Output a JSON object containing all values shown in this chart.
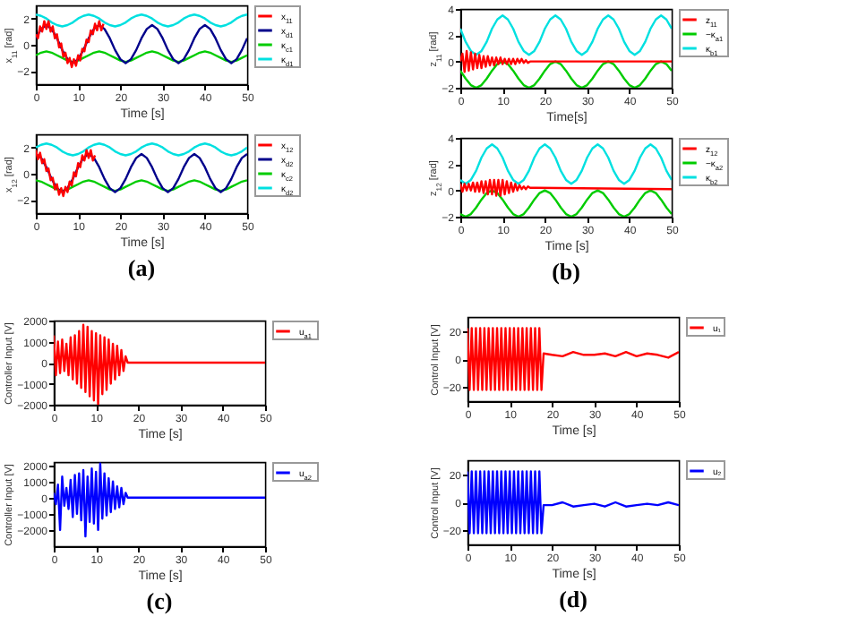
{
  "chart_data": [
    {
      "type": "line",
      "ylabel": "x$_{11}$ [rad]",
      "xlabel": "Time [s]",
      "xlim": [
        0,
        50
      ],
      "xticks": [
        0,
        10,
        20,
        30,
        40,
        50
      ],
      "ylim": [
        -3,
        3
      ],
      "yticks": [
        -2,
        0,
        2
      ],
      "legend": "top right",
      "x": [
        0,
        1.25,
        2.5,
        3.75,
        5,
        6.25,
        7.5,
        8.75,
        10,
        11.25,
        12.5,
        13.75,
        15,
        16.25,
        17.5,
        18.75,
        20,
        21.25,
        22.5,
        23.75,
        25,
        26.25,
        27.5,
        28.75,
        30,
        31.25,
        32.5,
        33.75,
        35,
        36.25,
        37.5,
        38.75,
        40,
        41.25,
        42.5,
        43.75,
        45,
        46.25,
        47.5,
        48.75,
        50
      ],
      "series": [
        {
          "name": "x$_{11}$",
          "color": "#ff0000",
          "x": [
            0,
            0.5,
            1,
            1.5,
            2,
            2.5,
            3,
            3.5,
            4,
            4.5,
            5,
            5.5,
            6,
            6.5,
            7,
            7.5,
            8,
            8.5,
            9,
            9.5,
            10,
            10.5,
            11,
            11.5,
            12,
            12.5,
            13,
            13.5,
            14,
            14.5,
            15,
            15.5,
            16
          ],
          "values": [
            0.8,
            0.5,
            1.4,
            1.0,
            1.8,
            1.2,
            1.8,
            1.0,
            1.4,
            0.5,
            0.8,
            -0.2,
            0.1,
            -0.9,
            -0.6,
            -1.4,
            -1.0,
            -1.7,
            -1.1,
            -1.6,
            -0.8,
            -1.2,
            -0.3,
            -0.5,
            0.4,
            0.2,
            1.1,
            0.8,
            1.6,
            1.1,
            1.8,
            1.1,
            1.6
          ]
        },
        {
          "name": "x$_{d1}$",
          "color": "#00008b",
          "values": [
            0.5,
            1.2,
            1.5,
            1.2,
            0.5,
            -0.4,
            -1.1,
            -1.4,
            -1.1,
            -0.4,
            0.5,
            1.2,
            1.5,
            1.2,
            0.5,
            -0.4,
            -1.1,
            -1.4,
            -1.1,
            -0.4,
            0.5,
            1.2,
            1.5,
            1.2,
            0.5,
            -0.4,
            -1.1,
            -1.4,
            -1.1,
            -0.4,
            0.5,
            1.2,
            1.5,
            1.2,
            0.5,
            -0.4,
            -1.1,
            -1.4,
            -1.1,
            -0.4,
            0.5
          ]
        },
        {
          "name": "κ$_{c1}$",
          "color": "#00cc00",
          "values": [
            -0.8,
            -0.6,
            -0.5,
            -0.6,
            -0.8,
            -1.0,
            -1.2,
            -1.3,
            -1.2,
            -1.0,
            -0.8,
            -0.6,
            -0.5,
            -0.6,
            -0.8,
            -1.0,
            -1.2,
            -1.3,
            -1.2,
            -1.0,
            -0.8,
            -0.6,
            -0.5,
            -0.6,
            -0.8,
            -1.0,
            -1.2,
            -1.3,
            -1.2,
            -1.0,
            -0.8,
            -0.6,
            -0.5,
            -0.6,
            -0.8,
            -1.0,
            -1.2,
            -1.3,
            -1.2,
            -1.0,
            -0.8
          ]
        },
        {
          "name": "κ$_{d1}$",
          "color": "#00e0e0",
          "values": [
            2.3,
            2.2,
            2.0,
            1.7,
            1.5,
            1.4,
            1.5,
            1.7,
            2.0,
            2.2,
            2.3,
            2.2,
            2.0,
            1.7,
            1.5,
            1.4,
            1.5,
            1.7,
            2.0,
            2.2,
            2.3,
            2.2,
            2.0,
            1.7,
            1.5,
            1.4,
            1.5,
            1.7,
            2.0,
            2.2,
            2.3,
            2.2,
            2.0,
            1.7,
            1.5,
            1.4,
            1.5,
            1.7,
            2.0,
            2.2,
            2.3
          ]
        }
      ]
    },
    {
      "type": "line",
      "ylabel": "x$_{12}$ [rad]",
      "xlabel": "Time [s]",
      "annotations": [
        "(a)"
      ],
      "xlim": [
        0,
        50
      ],
      "xticks": [
        0,
        10,
        20,
        30,
        40,
        50
      ],
      "ylim": [
        -3,
        3
      ],
      "yticks": [
        -2,
        0,
        2
      ],
      "legend": "top right",
      "x": [
        0,
        1.25,
        2.5,
        3.75,
        5,
        6.25,
        7.5,
        8.75,
        10,
        11.25,
        12.5,
        13.75,
        15,
        16.25,
        17.5,
        18.75,
        20,
        21.25,
        22.5,
        23.75,
        25,
        26.25,
        27.5,
        28.75,
        30,
        31.25,
        32.5,
        33.75,
        35,
        36.25,
        37.5,
        38.75,
        40,
        41.25,
        42.5,
        43.75,
        45,
        46.25,
        47.5,
        48.75,
        50
      ],
      "series": [
        {
          "name": "x$_{12}$",
          "color": "#ff0000",
          "x": [
            0,
            0.5,
            1,
            1.5,
            2,
            2.5,
            3,
            3.5,
            4,
            4.5,
            5,
            5.5,
            6,
            6.5,
            7,
            7.5,
            8,
            8.5,
            9,
            9.5,
            10,
            10.5,
            11,
            11.5,
            12,
            12.5,
            13,
            13.5,
            14
          ],
          "values": [
            1.8,
            1.1,
            1.6,
            0.8,
            1.1,
            0.2,
            0.4,
            -0.5,
            -0.3,
            -1.2,
            -0.8,
            -1.6,
            -1.1,
            -1.7,
            -1.0,
            -1.4,
            -0.6,
            -0.9,
            0.1,
            -0.2,
            0.8,
            0.5,
            1.4,
            1.0,
            1.8,
            1.2,
            1.8,
            1.0,
            1.4
          ]
        },
        {
          "name": "x$_{d2}$",
          "color": "#00008b",
          "values": [
            1.5,
            1.2,
            0.5,
            -0.4,
            -1.1,
            -1.4,
            -1.1,
            -0.4,
            0.5,
            1.2,
            1.5,
            1.2,
            0.5,
            -0.4,
            -1.1,
            -1.4,
            -1.1,
            -0.4,
            0.5,
            1.2,
            1.5,
            1.2,
            0.5,
            -0.4,
            -1.1,
            -1.4,
            -1.1,
            -0.4,
            0.5,
            1.2,
            1.5,
            1.2,
            0.5,
            -0.4,
            -1.1,
            -1.4,
            -1.1,
            -0.4,
            0.5,
            1.2,
            1.5
          ]
        },
        {
          "name": "κ$_{c2}$",
          "color": "#00cc00",
          "values": [
            -0.5,
            -0.6,
            -0.8,
            -1.0,
            -1.2,
            -1.3,
            -1.2,
            -1.0,
            -0.8,
            -0.6,
            -0.5,
            -0.6,
            -0.8,
            -1.0,
            -1.2,
            -1.3,
            -1.2,
            -1.0,
            -0.8,
            -0.6,
            -0.5,
            -0.6,
            -0.8,
            -1.0,
            -1.2,
            -1.3,
            -1.2,
            -1.0,
            -0.8,
            -0.6,
            -0.5,
            -0.6,
            -0.8,
            -1.0,
            -1.2,
            -1.3,
            -1.2,
            -1.0,
            -0.8,
            -0.6,
            -0.5
          ]
        },
        {
          "name": "κ$_{d2}$",
          "color": "#00e0e0",
          "values": [
            2.0,
            2.2,
            2.3,
            2.2,
            2.0,
            1.7,
            1.5,
            1.4,
            1.5,
            1.7,
            2.0,
            2.2,
            2.3,
            2.2,
            2.0,
            1.7,
            1.5,
            1.4,
            1.5,
            1.7,
            2.0,
            2.2,
            2.3,
            2.2,
            2.0,
            1.7,
            1.5,
            1.4,
            1.5,
            1.7,
            2.0,
            2.2,
            2.3,
            2.2,
            2.0,
            1.7,
            1.5,
            1.4,
            1.5,
            1.7,
            2.0
          ]
        }
      ]
    },
    {
      "type": "line",
      "ylabel": "z$_{11}$ [rad]",
      "xlabel": "Time[s]",
      "xlim": [
        0,
        50
      ],
      "xticks": [
        0,
        10,
        20,
        30,
        40,
        50
      ],
      "ylim": [
        -2,
        4
      ],
      "yticks": [
        -2,
        0,
        2,
        4
      ],
      "legend": "top right",
      "x": [
        0,
        1.25,
        2.5,
        3.75,
        5,
        6.25,
        7.5,
        8.75,
        10,
        11.25,
        12.5,
        13.75,
        15,
        16.25,
        17.5,
        18.75,
        20,
        21.25,
        22.5,
        23.75,
        25,
        26.25,
        27.5,
        28.75,
        30,
        31.25,
        32.5,
        33.75,
        35,
        36.25,
        37.5,
        38.75,
        40,
        41.25,
        42.5,
        43.75,
        45,
        46.25,
        47.5,
        48.75,
        50
      ],
      "series": [
        {
          "name": "z$_{11}$",
          "color": "#ff0000",
          "x": [
            0,
            0.5,
            1,
            1.5,
            2,
            2.5,
            3,
            3.5,
            4,
            4.5,
            5,
            5.5,
            6,
            6.5,
            7,
            7.5,
            8,
            8.5,
            9,
            9.5,
            10,
            10.5,
            11,
            11.5,
            12,
            12.5,
            13,
            13.5,
            14,
            14.5,
            15,
            15.5,
            16,
            16.5,
            20,
            50
          ],
          "values": [
            0,
            0.6,
            -0.8,
            0.8,
            -0.7,
            0.7,
            -0.6,
            0.6,
            -0.5,
            0.5,
            -0.5,
            0.4,
            -0.4,
            0.4,
            -0.3,
            0.3,
            -0.3,
            0.3,
            -0.2,
            0.3,
            -0.2,
            0.2,
            -0.2,
            0.2,
            -0.2,
            0.2,
            -0.2,
            0.2,
            -0.1,
            0.2,
            -0.1,
            0.1,
            -0.1,
            0,
            0,
            0
          ]
        },
        {
          "name": "−κ$_{a1}$",
          "color": "#00cc00",
          "values": [
            -0.7,
            -1.3,
            -1.8,
            -2.0,
            -1.8,
            -1.3,
            -0.7,
            -0.2,
            0,
            -0.2,
            -0.7,
            -1.3,
            -1.8,
            -2.0,
            -1.8,
            -1.3,
            -0.7,
            -0.2,
            0,
            -0.2,
            -0.7,
            -1.3,
            -1.8,
            -2.0,
            -1.8,
            -1.3,
            -0.7,
            -0.2,
            0,
            -0.2,
            -0.7,
            -1.3,
            -1.8,
            -2.0,
            -1.8,
            -1.3,
            -0.7,
            -0.2,
            0,
            -0.2,
            -0.7
          ]
        },
        {
          "name": "κ$_{b1}$",
          "color": "#00e0e0",
          "values": [
            2.5,
            1.5,
            0.8,
            0.5,
            0.8,
            1.5,
            2.5,
            3.2,
            3.5,
            3.2,
            2.5,
            1.5,
            0.8,
            0.5,
            0.8,
            1.5,
            2.5,
            3.2,
            3.5,
            3.2,
            2.5,
            1.5,
            0.8,
            0.5,
            0.8,
            1.5,
            2.5,
            3.2,
            3.5,
            3.2,
            2.5,
            1.5,
            0.8,
            0.5,
            0.8,
            1.5,
            2.5,
            3.2,
            3.5,
            3.2,
            2.5
          ]
        }
      ]
    },
    {
      "type": "line",
      "ylabel": "z$_{12}$ [rad]",
      "xlabel": "Time [s]",
      "annotations": [
        "(b)"
      ],
      "xlim": [
        0,
        50
      ],
      "xticks": [
        0,
        10,
        20,
        30,
        40,
        50
      ],
      "ylim": [
        -2,
        4
      ],
      "yticks": [
        -2,
        0,
        2,
        4
      ],
      "legend": "top right",
      "x": [
        0,
        1.25,
        2.5,
        3.75,
        5,
        6.25,
        7.5,
        8.75,
        10,
        11.25,
        12.5,
        13.75,
        15,
        16.25,
        17.5,
        18.75,
        20,
        21.25,
        22.5,
        23.75,
        25,
        26.25,
        27.5,
        28.75,
        30,
        31.25,
        32.5,
        33.75,
        35,
        36.25,
        37.5,
        38.75,
        40,
        41.25,
        42.5,
        43.75,
        45,
        46.25,
        47.5,
        48.75,
        50
      ],
      "series": [
        {
          "name": "z$_{12}$",
          "color": "#ff0000",
          "x": [
            0,
            0.5,
            1,
            1.5,
            2,
            2.5,
            3,
            3.5,
            4,
            4.5,
            5,
            5.5,
            6,
            6.5,
            7,
            7.5,
            8,
            8.5,
            9,
            9.5,
            10,
            10.5,
            11,
            11.5,
            12,
            12.5,
            13,
            13.5,
            14,
            14.5,
            15,
            15.5,
            16,
            16.5,
            17,
            17.5,
            18,
            50
          ],
          "values": [
            0.5,
            -0.1,
            0.5,
            0,
            0.5,
            0,
            0.6,
            -0.1,
            0.6,
            -0.1,
            0.7,
            -0.2,
            0.7,
            -0.3,
            0.8,
            -0.3,
            0.8,
            -0.4,
            0.8,
            -0.4,
            0.8,
            -0.3,
            0.7,
            -0.2,
            0.6,
            -0.1,
            0.5,
            0,
            0.4,
            0.1,
            0.3,
            0.1,
            0.3,
            0.2,
            0.2,
            0.2,
            0.2,
            0.1
          ]
        },
        {
          "name": "−κ$_{a2}$",
          "color": "#00cc00",
          "values": [
            -1.8,
            -2.0,
            -1.8,
            -1.3,
            -0.7,
            -0.2,
            0,
            -0.2,
            -0.7,
            -1.3,
            -1.8,
            -2.0,
            -1.8,
            -1.3,
            -0.7,
            -0.2,
            0,
            -0.2,
            -0.7,
            -1.3,
            -1.8,
            -2.0,
            -1.8,
            -1.3,
            -0.7,
            -0.2,
            0,
            -0.2,
            -0.7,
            -1.3,
            -1.8,
            -2.0,
            -1.8,
            -1.3,
            -0.7,
            -0.2,
            0,
            -0.2,
            -0.7,
            -1.3,
            -1.8
          ]
        },
        {
          "name": "κ$_{b2}$",
          "color": "#00e0e0",
          "values": [
            0.8,
            0.5,
            0.8,
            1.5,
            2.5,
            3.2,
            3.5,
            3.2,
            2.5,
            1.5,
            0.8,
            0.5,
            0.8,
            1.5,
            2.5,
            3.2,
            3.5,
            3.2,
            2.5,
            1.5,
            0.8,
            0.5,
            0.8,
            1.5,
            2.5,
            3.2,
            3.5,
            3.2,
            2.5,
            1.5,
            0.8,
            0.5,
            0.8,
            1.5,
            2.5,
            3.2,
            3.5,
            3.2,
            2.5,
            1.5,
            0.8
          ]
        }
      ]
    },
    {
      "type": "line",
      "ylabel": "Controller Input [V]",
      "xlabel": "Time [s]",
      "xlim": [
        0,
        50
      ],
      "xticks": [
        0,
        10,
        20,
        30,
        40,
        50
      ],
      "ylim": [
        -2000,
        2000
      ],
      "yticks": [
        -2000,
        -1000,
        0,
        1000,
        2000
      ],
      "legend": "top right",
      "x": [
        0,
        0.5,
        1,
        1.5,
        2,
        2.5,
        3,
        3.5,
        4,
        4.5,
        5,
        5.5,
        6,
        6.5,
        7,
        7.5,
        8,
        8.5,
        9,
        9.5,
        10,
        10.5,
        11,
        11.5,
        12,
        12.5,
        13,
        13.5,
        14,
        14.5,
        15,
        15.5,
        16,
        16.5,
        17,
        17.5,
        50
      ],
      "series": [
        {
          "name": "u$_{a1}$",
          "color": "#ff0000",
          "values": [
            1300,
            -600,
            1000,
            -500,
            1100,
            -400,
            900,
            -600,
            1200,
            -800,
            1300,
            -1000,
            1500,
            -1200,
            1800,
            -1400,
            1700,
            -1600,
            1500,
            -1800,
            1400,
            -2000,
            1300,
            -1500,
            1200,
            -1300,
            1100,
            -1000,
            900,
            -800,
            800,
            -600,
            600,
            -400,
            300,
            0,
            0
          ]
        }
      ]
    },
    {
      "type": "line",
      "ylabel": "Controller Input [V]",
      "xlabel": "Time [s]",
      "annotations": [
        "(c)"
      ],
      "xlim": [
        0,
        50
      ],
      "xticks": [
        0,
        10,
        20,
        30,
        40,
        50
      ],
      "ylim": [
        -3000,
        2200
      ],
      "yticks": [
        -2000,
        -1000,
        0,
        1000,
        2000
      ],
      "legend": "top right",
      "x": [
        0,
        0.5,
        1,
        1.5,
        2,
        2.5,
        3,
        3.5,
        4,
        4.5,
        5,
        5.5,
        6,
        6.5,
        7,
        7.5,
        8,
        8.5,
        9,
        9.5,
        10,
        10.5,
        11,
        11.5,
        12,
        12.5,
        13,
        13.5,
        14,
        14.5,
        15,
        15.5,
        16,
        16.5,
        17,
        17.5,
        50
      ],
      "series": [
        {
          "name": "u$_{a2}$",
          "color": "#0000ff",
          "values": [
            300,
            -400,
            800,
            -2000,
            1300,
            -500,
            600,
            -700,
            1100,
            -1200,
            1400,
            -1000,
            1500,
            -1400,
            1700,
            -2400,
            1300,
            -1500,
            1800,
            -1600,
            1600,
            -2000,
            2100,
            -1300,
            1500,
            -1100,
            1200,
            -900,
            1000,
            -700,
            700,
            -600,
            600,
            -400,
            300,
            0,
            0
          ]
        }
      ]
    },
    {
      "type": "line",
      "ylabel": "Control Input [V]",
      "xlabel": "Time [s]",
      "xlim": [
        0,
        50
      ],
      "xticks": [
        0,
        10,
        20,
        30,
        40,
        50
      ],
      "ylim": [
        -30,
        30
      ],
      "yticks": [
        -20,
        0,
        20
      ],
      "legend": "top right",
      "x": [
        0,
        0.5,
        1,
        1.5,
        2,
        2.5,
        3,
        3.5,
        4,
        4.5,
        5,
        5.5,
        6,
        6.5,
        7,
        7.5,
        8,
        8.5,
        9,
        9.5,
        10,
        10.5,
        11,
        11.5,
        12,
        12.5,
        13,
        13.5,
        14,
        14.5,
        15,
        15.5,
        16,
        16.5,
        17,
        17.5,
        18,
        20,
        22.5,
        25,
        27.5,
        30,
        32.5,
        35,
        37.5,
        40,
        42.5,
        45,
        47.5,
        50
      ],
      "series": [
        {
          "name": "u₁",
          "color": "#ff0000",
          "values": [
            22,
            -22,
            22,
            -22,
            22,
            -22,
            22,
            -22,
            22,
            -22,
            22,
            -22,
            22,
            -22,
            22,
            -22,
            22,
            -22,
            22,
            -22,
            22,
            -22,
            22,
            -22,
            22,
            -22,
            22,
            -22,
            22,
            -22,
            22,
            -22,
            22,
            -22,
            22,
            -22,
            4,
            3,
            2,
            5,
            3,
            3,
            4,
            2,
            5,
            2,
            4,
            3,
            1,
            5
          ]
        }
      ]
    },
    {
      "type": "line",
      "ylabel": "Control Input [V]",
      "xlabel": "Time [s]",
      "annotations": [
        "(d)"
      ],
      "xlim": [
        0,
        50
      ],
      "xticks": [
        0,
        10,
        20,
        30,
        40,
        50
      ],
      "ylim": [
        -30,
        30
      ],
      "yticks": [
        -20,
        0,
        20
      ],
      "legend": "top right",
      "x": [
        0,
        0.5,
        1,
        1.5,
        2,
        2.5,
        3,
        3.5,
        4,
        4.5,
        5,
        5.5,
        6,
        6.5,
        7,
        7.5,
        8,
        8.5,
        9,
        9.5,
        10,
        10.5,
        11,
        11.5,
        12,
        12.5,
        13,
        13.5,
        14,
        14.5,
        15,
        15.5,
        16,
        16.5,
        17,
        17.5,
        18,
        20,
        22.5,
        25,
        27.5,
        30,
        32.5,
        35,
        37.5,
        40,
        42.5,
        45,
        47.5,
        50
      ],
      "series": [
        {
          "name": "u₂",
          "color": "#0000ff",
          "values": [
            22,
            -22,
            22,
            -22,
            22,
            -22,
            22,
            -22,
            22,
            -22,
            22,
            -22,
            22,
            -22,
            22,
            -22,
            22,
            -22,
            22,
            -22,
            22,
            -22,
            22,
            -22,
            22,
            -22,
            22,
            -22,
            22,
            -22,
            22,
            -22,
            22,
            -22,
            22,
            -22,
            -2,
            -2,
            0,
            -3,
            -2,
            -1,
            -3,
            0,
            -3,
            -2,
            -1,
            -2,
            0,
            -2
          ]
        }
      ]
    }
  ]
}
